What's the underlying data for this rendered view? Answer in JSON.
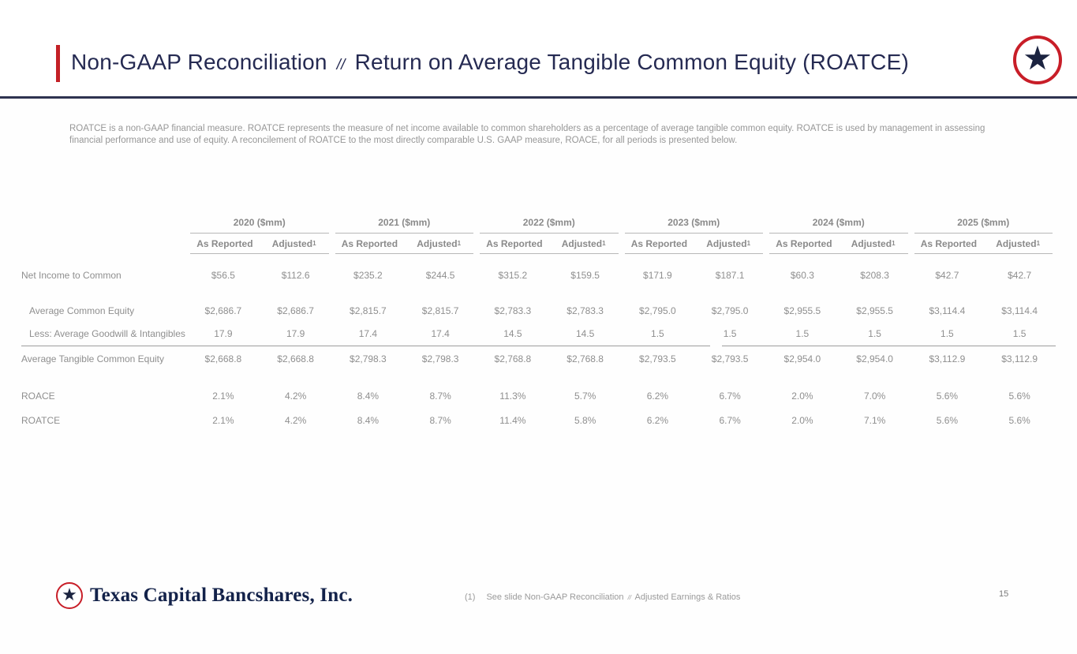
{
  "slide": {
    "title": {
      "main": "Non-GAAP Reconciliation",
      "separator": "//",
      "sub": "Return on Average Tangible Common Equity (ROATCE)"
    },
    "intro": "ROATCE is a non-GAAP financial measure.  ROATCE represents the measure of net income available to common shareholders as a percentage of average tangible common equity.  ROATCE is used by management in assessing financial performance and use of equity.  A reconcilement of ROATCE to the most directly comparable U.S. GAAP measure, ROACE, for all periods is presented below.",
    "page_number": "15"
  },
  "icons": {
    "star": "★"
  },
  "colors": {
    "navy": "#252a52",
    "red": "#c32026",
    "gray_text": "#8f8f8f",
    "rule_gray": "#b7b7b7"
  },
  "table": {
    "year_groups": [
      "2020 ($mm)",
      "2021 ($mm)",
      "2022 ($mm)",
      "2023 ($mm)",
      "2024 ($mm)",
      "2025 ($mm)"
    ],
    "sub_headers": {
      "as_reported": "As Reported",
      "adjusted": "Adjusted",
      "adjusted_footnote_ref": "1"
    },
    "rows": [
      {
        "label": "Net Income to Common",
        "indent": false,
        "values": [
          "$56.5",
          "$112.6",
          "$235.2",
          "$244.5",
          "$315.2",
          "$159.5",
          "$171.9",
          "$187.1",
          "$60.3",
          "$208.3",
          "$42.7",
          "$42.7"
        ]
      },
      {
        "label": "Average Common Equity",
        "indent": true,
        "values": [
          "$2,686.7",
          "$2,686.7",
          "$2,815.7",
          "$2,815.7",
          "$2,783.3",
          "$2,783.3",
          "$2,795.0",
          "$2,795.0",
          "$2,955.5",
          "$2,955.5",
          "$3,114.4",
          "$3,114.4"
        ]
      },
      {
        "label": "Less: Average Goodwill & Intangibles",
        "indent": true,
        "values": [
          "17.9",
          "17.9",
          "17.4",
          "17.4",
          "14.5",
          "14.5",
          "1.5",
          "1.5",
          "1.5",
          "1.5",
          "1.5",
          "1.5"
        ]
      },
      {
        "label": "Average Tangible Common Equity",
        "indent": false,
        "values": [
          "$2,668.8",
          "$2,668.8",
          "$2,798.3",
          "$2,798.3",
          "$2,768.8",
          "$2,768.8",
          "$2,793.5",
          "$2,793.5",
          "$2,954.0",
          "$2,954.0",
          "$3,112.9",
          "$3,112.9"
        ]
      },
      {
        "label": "ROACE",
        "indent": false,
        "values": [
          "2.1%",
          "4.2%",
          "8.4%",
          "8.7%",
          "11.3%",
          "5.7%",
          "6.2%",
          "6.7%",
          "2.0%",
          "7.0%",
          "5.6%",
          "5.6%"
        ]
      },
      {
        "label": "ROATCE",
        "indent": false,
        "values": [
          "2.1%",
          "4.2%",
          "8.4%",
          "8.7%",
          "11.4%",
          "5.8%",
          "6.2%",
          "6.7%",
          "2.0%",
          "7.1%",
          "5.6%",
          "5.6%"
        ]
      }
    ]
  },
  "footer": {
    "brand": "Texas Capital Bancshares, Inc.",
    "footnote_marker": "(1)",
    "footnote_pre": "See slide Non-GAAP Reconciliation",
    "footnote_separator": "//",
    "footnote_post": "Adjusted Earnings & Ratios"
  }
}
